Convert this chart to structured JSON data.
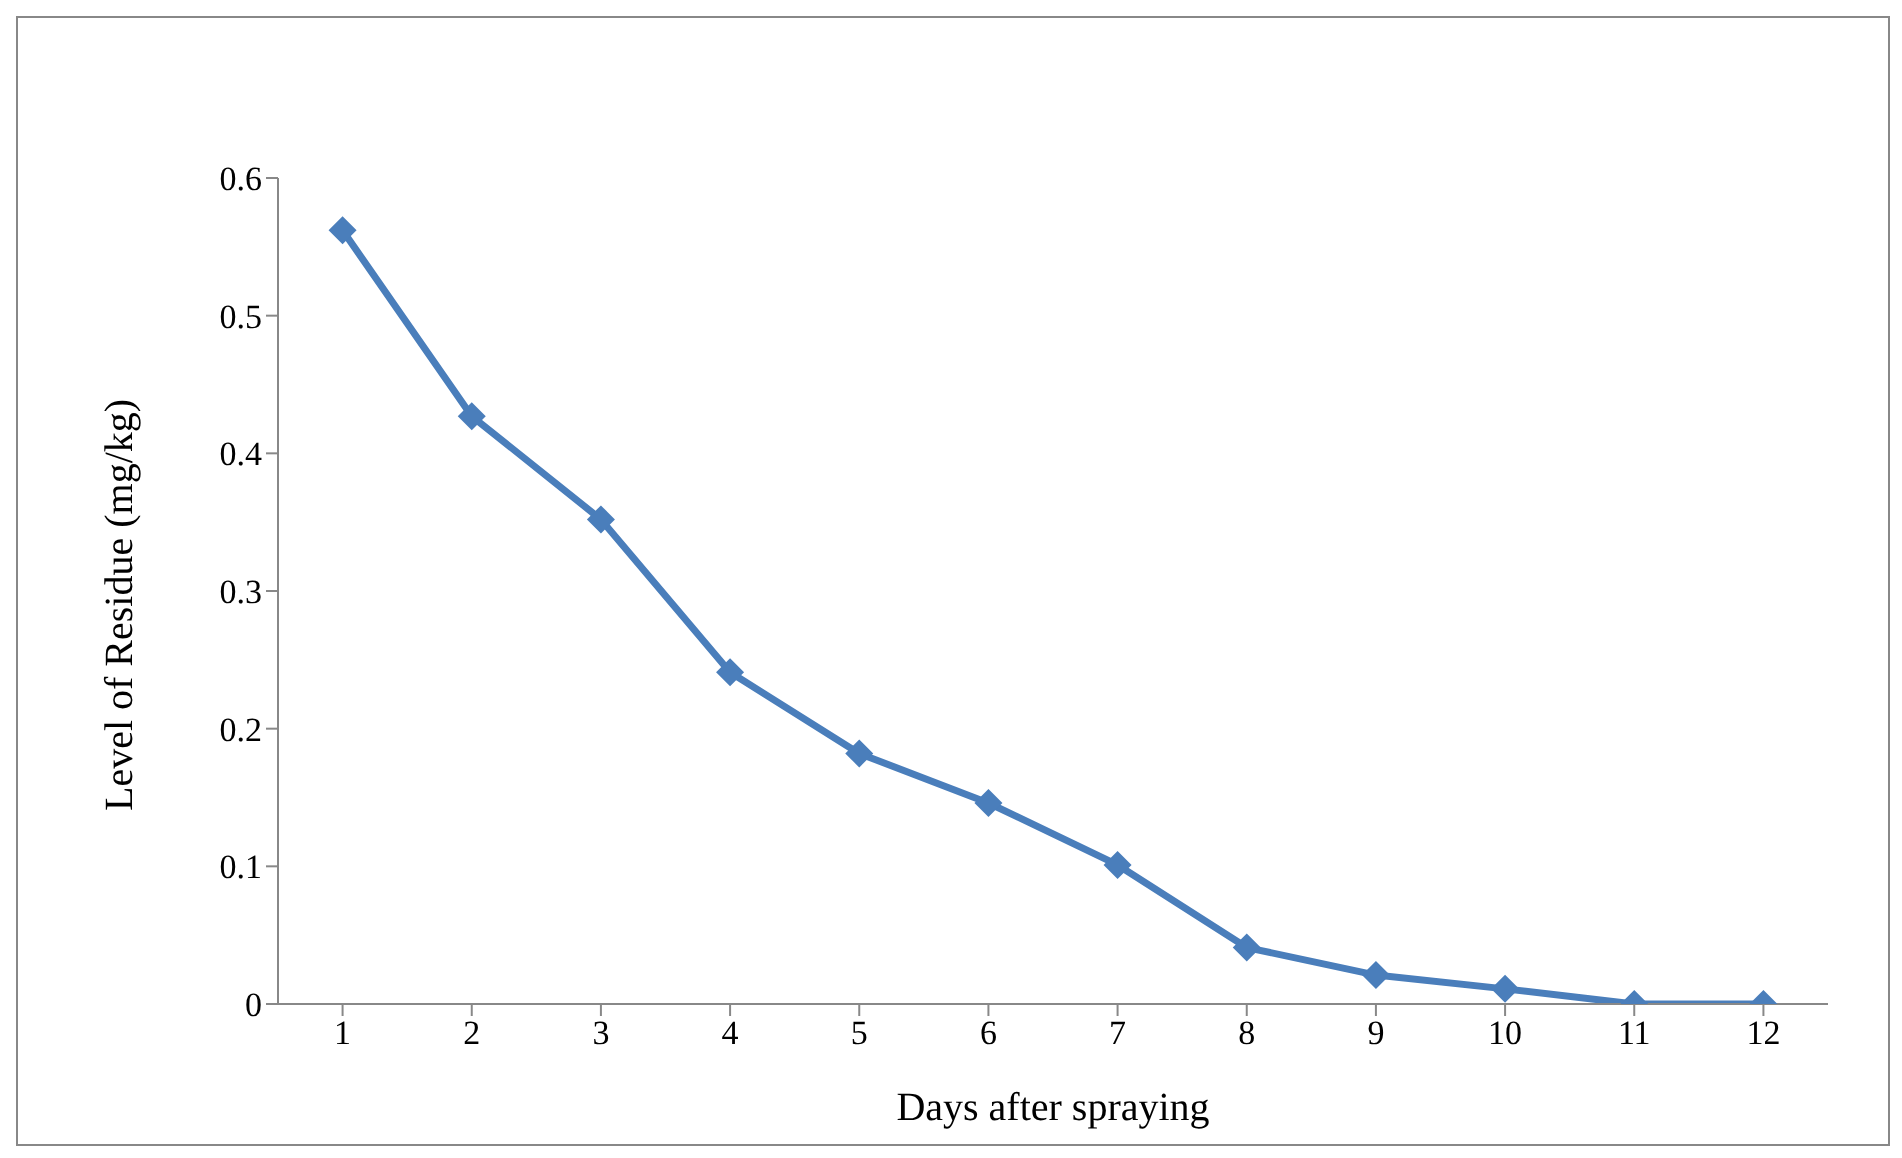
{
  "chart_data": {
    "type": "line",
    "xlabel": "Days after spraying",
    "ylabel": "Level of Residue (mg/kg)",
    "x": [
      1,
      2,
      3,
      4,
      5,
      6,
      7,
      8,
      9,
      10,
      11,
      12
    ],
    "series": [
      {
        "color": "#4a7ebb",
        "values": [
          0.562,
          0.427,
          0.352,
          0.241,
          0.182,
          0.146,
          0.101,
          0.041,
          0.021,
          0.011,
          0.0,
          0.0
        ]
      }
    ],
    "xlim": [
      0.5,
      12.5
    ],
    "xticks": [
      1,
      2,
      3,
      4,
      5,
      6,
      7,
      8,
      9,
      10,
      11,
      12
    ],
    "ylim": [
      0,
      0.6
    ],
    "yticks": [
      {
        "value": 0,
        "label": "0"
      },
      0.1,
      0.2,
      0.3,
      0.4,
      0.5,
      0.6
    ],
    "grid": false,
    "legend": false,
    "marker": "diamond",
    "line_style": "solid"
  }
}
